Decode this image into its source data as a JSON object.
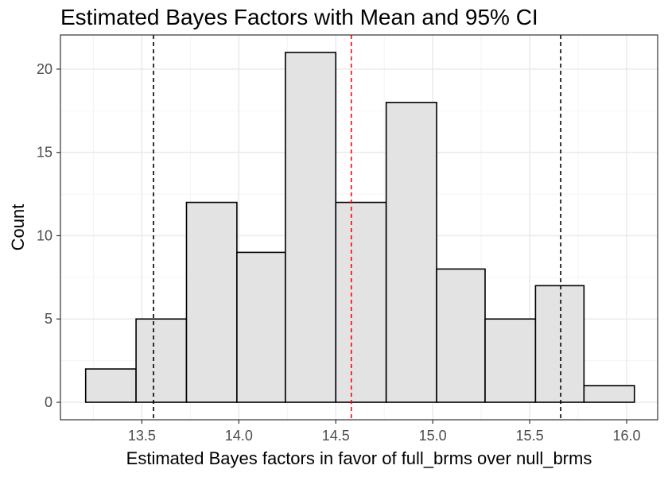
{
  "chart_data": {
    "type": "bar",
    "title": "Estimated Bayes Factors with Mean and 95% CI",
    "xlabel": "Estimated Bayes factors in favor of full_brms over null_brms",
    "ylabel": "Count",
    "bins": [
      {
        "x0": 13.21,
        "x1": 13.47,
        "count": 2
      },
      {
        "x0": 13.47,
        "x1": 13.73,
        "count": 5
      },
      {
        "x0": 13.73,
        "x1": 13.99,
        "count": 12
      },
      {
        "x0": 13.99,
        "x1": 14.24,
        "count": 9
      },
      {
        "x0": 14.24,
        "x1": 14.5,
        "count": 21
      },
      {
        "x0": 14.5,
        "x1": 14.76,
        "count": 12
      },
      {
        "x0": 14.76,
        "x1": 15.02,
        "count": 18
      },
      {
        "x0": 15.02,
        "x1": 15.27,
        "count": 8
      },
      {
        "x0": 15.27,
        "x1": 15.53,
        "count": 5
      },
      {
        "x0": 15.53,
        "x1": 15.78,
        "count": 7
      },
      {
        "x0": 15.78,
        "x1": 16.04,
        "count": 1
      }
    ],
    "mean": 14.58,
    "ci_lower": 13.56,
    "ci_upper": 15.66,
    "xlim": [
      13.08,
      16.16
    ],
    "ylim": [
      -1.05,
      22.05
    ],
    "x_ticks": [
      13.5,
      14.0,
      14.5,
      15.0,
      15.5,
      16.0
    ],
    "x_tick_labels": [
      "13.5",
      "14.0",
      "14.5",
      "15.0",
      "15.5",
      "16.0"
    ],
    "y_ticks": [
      0,
      5,
      10,
      15,
      20
    ],
    "y_tick_labels": [
      "0",
      "5",
      "10",
      "15",
      "20"
    ],
    "grid": true,
    "colors": {
      "bar_fill": "#e3e3e3",
      "bar_stroke": "#000000",
      "mean_line": "#ff0000",
      "ci_line": "#000000",
      "grid_major": "#ebebeb",
      "grid_minor": "#f4f4f4",
      "panel_border": "#333333",
      "tick_text": "#4d4d4d"
    }
  }
}
